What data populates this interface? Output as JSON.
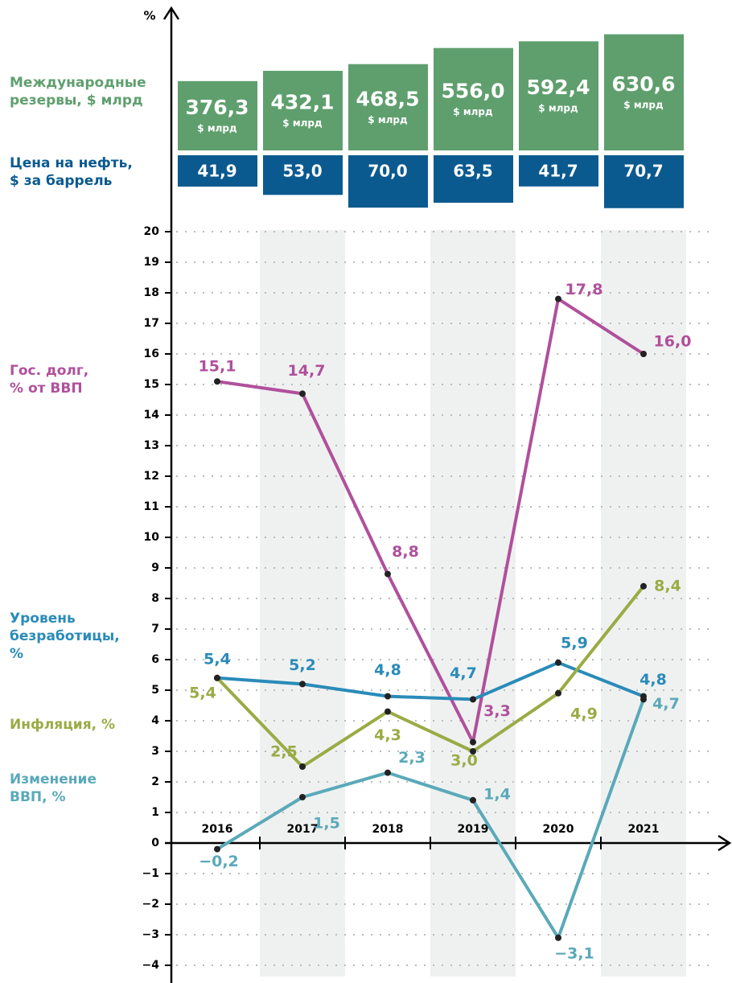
{
  "chart_data": {
    "type": "line",
    "y_label": "%",
    "categories": [
      "2016",
      "2017",
      "2018",
      "2019",
      "2020",
      "2021"
    ],
    "reserves": {
      "name": "Международные\nрезервы, $ млрд",
      "color": "#5f9f6e",
      "unit": "$ млрд",
      "values": [
        376.3,
        432.1,
        468.5,
        556.0,
        592.4,
        630.6
      ],
      "value_labels": [
        "376,3",
        "432,1",
        "468,5",
        "556,0",
        "592,4",
        "630,6"
      ]
    },
    "oil": {
      "name": "Цена на нефть,\n$ за баррель",
      "color": "#0b5a8f",
      "values": [
        41.9,
        53.0,
        70.0,
        63.5,
        41.7,
        70.7
      ],
      "value_labels": [
        "41,9",
        "53,0",
        "70,0",
        "63,5",
        "41,7",
        "70,7"
      ]
    },
    "series": [
      {
        "name": "Гос. долг,\n% от ВВП",
        "color": "#b0509c",
        "values": [
          15.1,
          14.7,
          8.8,
          3.3,
          17.8,
          16.0
        ],
        "value_labels": [
          "15,1",
          "14,7",
          "8,8",
          "3,3",
          "17,8",
          "16,0"
        ]
      },
      {
        "name": "Уровень\nбезработицы,\n%",
        "color": "#2a8bb9",
        "values": [
          5.4,
          5.2,
          4.8,
          4.7,
          5.9,
          4.8
        ],
        "value_labels": [
          "5,4",
          "5,2",
          "4,8",
          "4,7",
          "5,9",
          "4,8"
        ]
      },
      {
        "name": "Инфляция, %",
        "color": "#9aab45",
        "values": [
          5.4,
          2.5,
          4.3,
          3.0,
          4.9,
          8.4
        ],
        "value_labels": [
          "5,4",
          "2,5",
          "4,3",
          "3,0",
          "4,9",
          "8,4"
        ]
      },
      {
        "name": "Изменение\nВВП, %",
        "color": "#5aa9b9",
        "values": [
          -0.2,
          1.5,
          2.3,
          1.4,
          -3.1,
          4.7
        ],
        "value_labels": [
          "−0,2",
          "1,5",
          "2,3",
          "1,4",
          "−3,1",
          "4,7"
        ]
      }
    ],
    "ylim": [
      -4,
      20
    ],
    "yticks": [
      {
        "value": -4,
        "label": "−4"
      },
      {
        "value": -3,
        "label": "−3"
      },
      {
        "value": -2,
        "label": "−2"
      },
      {
        "value": -1,
        "label": "−1"
      },
      0,
      1,
      2,
      3,
      4,
      5,
      6,
      7,
      8,
      9,
      10,
      11,
      12,
      13,
      14,
      15,
      16,
      17,
      18,
      19,
      20
    ],
    "grid": true
  }
}
